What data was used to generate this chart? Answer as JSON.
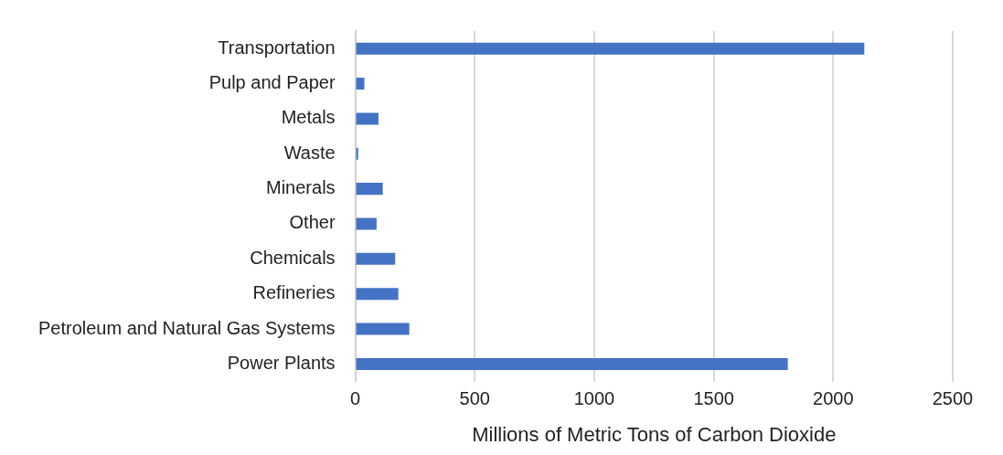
{
  "chart_data": {
    "type": "bar",
    "orientation": "horizontal",
    "xlabel": "Millions of Metric Tons of Carbon Dioxide",
    "categories": [
      "Transportation",
      "Pulp and Paper",
      "Metals",
      "Waste",
      "Minerals",
      "Other",
      "Chemicals",
      "Refineries",
      "Petroleum and Natural Gas Systems",
      "Power Plants"
    ],
    "values": [
      2130,
      38,
      97,
      12,
      115,
      89,
      167,
      180,
      226,
      1810
    ],
    "color": "#4472c4",
    "xlim": [
      0,
      2500
    ],
    "xticks": [
      0,
      500,
      1000,
      1500,
      2000,
      2500
    ],
    "grid": "x",
    "legend": false
  }
}
